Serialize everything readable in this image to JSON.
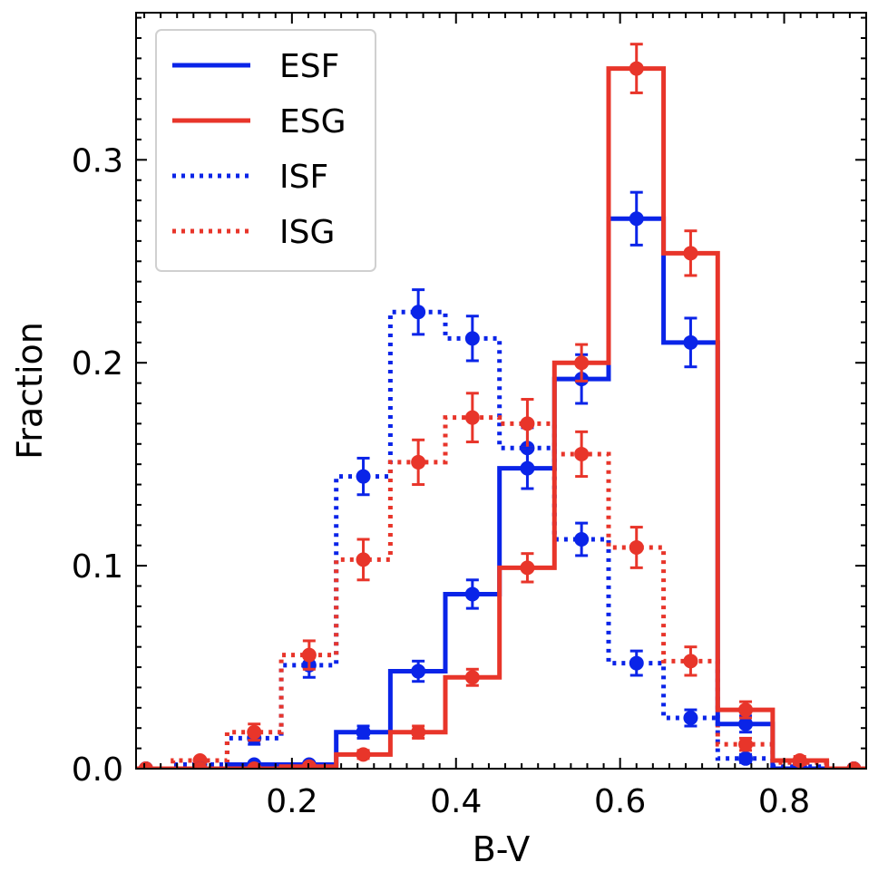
{
  "chart_data": {
    "type": "step",
    "xlabel": "B-V",
    "ylabel": "Fraction",
    "xlim": [
      0.01,
      0.9
    ],
    "ylim": [
      0.0,
      0.3725
    ],
    "bin_edges": [
      -0.005,
      0.055,
      0.121,
      0.187,
      0.254,
      0.32,
      0.387,
      0.453,
      0.52,
      0.586,
      0.653,
      0.719,
      0.786,
      0.852,
      0.918
    ],
    "x_ticks": [
      0.2,
      0.4,
      0.6,
      0.8
    ],
    "x_tick_labels": [
      "0.2",
      "0.4",
      "0.6",
      "0.8"
    ],
    "y_ticks": [
      0.0,
      0.1,
      0.2,
      0.3
    ],
    "y_tick_labels": [
      "0.0",
      "0.1",
      "0.2",
      "0.3"
    ],
    "legend_position": "top-left",
    "series": [
      {
        "name": "ESF",
        "color": "#0a24e8",
        "linestyle": "solid",
        "x": [
          0.022,
          0.088,
          0.154,
          0.221,
          0.287,
          0.354,
          0.42,
          0.487,
          0.553,
          0.62,
          0.686,
          0.753,
          0.819,
          0.885
        ],
        "values": [
          0.0,
          0.0,
          0.002,
          0.002,
          0.018,
          0.048,
          0.086,
          0.148,
          0.192,
          0.271,
          0.21,
          0.022,
          0.0,
          0.0
        ],
        "errors": [
          0.0,
          0.0,
          0.001,
          0.001,
          0.003,
          0.005,
          0.007,
          0.01,
          0.012,
          0.013,
          0.012,
          0.004,
          0.0,
          0.0
        ]
      },
      {
        "name": "ESG",
        "color": "#e8352a",
        "linestyle": "solid",
        "x": [
          0.022,
          0.088,
          0.154,
          0.221,
          0.287,
          0.354,
          0.42,
          0.487,
          0.553,
          0.62,
          0.686,
          0.753,
          0.819,
          0.885
        ],
        "values": [
          0.0,
          0.0,
          0.0,
          0.001,
          0.007,
          0.018,
          0.045,
          0.099,
          0.2,
          0.345,
          0.254,
          0.029,
          0.004,
          0.0
        ],
        "errors": [
          0.0,
          0.0,
          0.0,
          0.001,
          0.002,
          0.003,
          0.004,
          0.007,
          0.009,
          0.012,
          0.011,
          0.004,
          0.002,
          0.0
        ]
      },
      {
        "name": "ISF",
        "color": "#0a24e8",
        "linestyle": "dotted",
        "x": [
          0.022,
          0.088,
          0.154,
          0.221,
          0.287,
          0.354,
          0.42,
          0.487,
          0.553,
          0.62,
          0.686,
          0.753,
          0.819,
          0.885
        ],
        "values": [
          0.0,
          0.002,
          0.015,
          0.051,
          0.144,
          0.225,
          0.212,
          0.158,
          0.113,
          0.052,
          0.025,
          0.005,
          0.001,
          0.0
        ],
        "errors": [
          0.0,
          0.001,
          0.003,
          0.006,
          0.009,
          0.011,
          0.011,
          0.01,
          0.008,
          0.006,
          0.004,
          0.002,
          0.001,
          0.0
        ]
      },
      {
        "name": "ISG",
        "color": "#e8352a",
        "linestyle": "dotted",
        "x": [
          0.022,
          0.088,
          0.154,
          0.221,
          0.287,
          0.354,
          0.42,
          0.487,
          0.553,
          0.62,
          0.686,
          0.753,
          0.819,
          0.885
        ],
        "values": [
          0.0,
          0.004,
          0.018,
          0.056,
          0.103,
          0.151,
          0.173,
          0.17,
          0.155,
          0.109,
          0.053,
          0.012,
          0.003,
          0.0
        ],
        "errors": [
          0.0,
          0.001,
          0.004,
          0.007,
          0.01,
          0.011,
          0.012,
          0.012,
          0.011,
          0.01,
          0.007,
          0.003,
          0.002,
          0.0
        ]
      }
    ]
  }
}
